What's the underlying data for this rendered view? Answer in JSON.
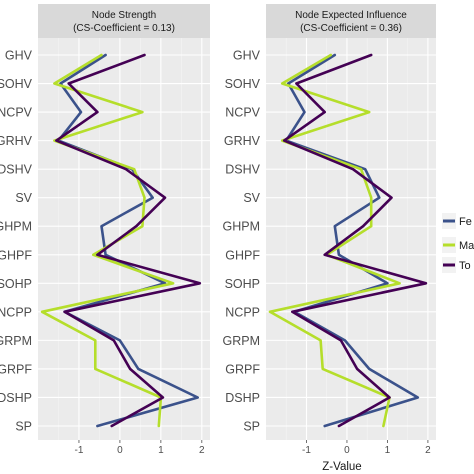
{
  "chart_data": {
    "type": "line",
    "xlabel": "Z-Value",
    "categories": [
      "GHV",
      "SOHV",
      "NCPV",
      "GRHV",
      "DSHV",
      "SV",
      "GHPM",
      "GHPF",
      "SOHP",
      "NCPP",
      "GRPM",
      "GRPF",
      "DSHP",
      "SP"
    ],
    "x_ticks": [
      -1,
      0,
      1,
      2
    ],
    "xlim": [
      -2.0,
      2.2
    ],
    "grid": true,
    "legend": {
      "position": "right",
      "entries": [
        {
          "label": "Fe",
          "color": "#3b528b"
        },
        {
          "label": "Ma",
          "color": "#b5de2b"
        },
        {
          "label": "To",
          "color": "#440154"
        }
      ]
    },
    "panels": [
      {
        "title_line1": "Node Strength",
        "title_line2": "(CS-Coefficient = 0.13)",
        "series": [
          {
            "color": "#3b528b",
            "values": [
              -0.35,
              -1.45,
              -0.95,
              -1.5,
              0.3,
              0.8,
              -0.45,
              -0.35,
              1.1,
              -1.35,
              0.0,
              0.45,
              1.9,
              -0.55
            ]
          },
          {
            "color": "#b5de2b",
            "values": [
              -0.45,
              -1.6,
              0.55,
              -1.6,
              0.35,
              0.6,
              0.55,
              -0.65,
              1.3,
              -1.9,
              -0.6,
              -0.6,
              1.0,
              0.95
            ]
          },
          {
            "color": "#440154",
            "values": [
              0.6,
              -1.25,
              -0.55,
              -1.55,
              0.15,
              1.1,
              0.4,
              -0.55,
              1.95,
              -1.35,
              -0.15,
              0.25,
              1.05,
              -0.2
            ]
          }
        ]
      },
      {
        "title_line1": "Node Expected Influence",
        "title_line2": "(CS-Coefficient = 0.36)",
        "series": [
          {
            "color": "#3b528b",
            "values": [
              -0.3,
              -1.45,
              -1.05,
              -1.5,
              0.45,
              0.8,
              -0.3,
              -0.2,
              1.0,
              -1.3,
              -0.05,
              0.55,
              1.75,
              -0.55
            ]
          },
          {
            "color": "#b5de2b",
            "values": [
              -0.4,
              -1.6,
              0.55,
              -1.6,
              0.35,
              0.6,
              0.6,
              -0.5,
              1.3,
              -1.9,
              -0.65,
              -0.6,
              1.05,
              0.9
            ]
          },
          {
            "color": "#440154",
            "values": [
              0.6,
              -1.25,
              -0.55,
              -1.55,
              0.15,
              1.1,
              0.4,
              -0.55,
              1.95,
              -1.35,
              -0.15,
              0.25,
              1.05,
              -0.2
            ]
          }
        ]
      }
    ]
  }
}
